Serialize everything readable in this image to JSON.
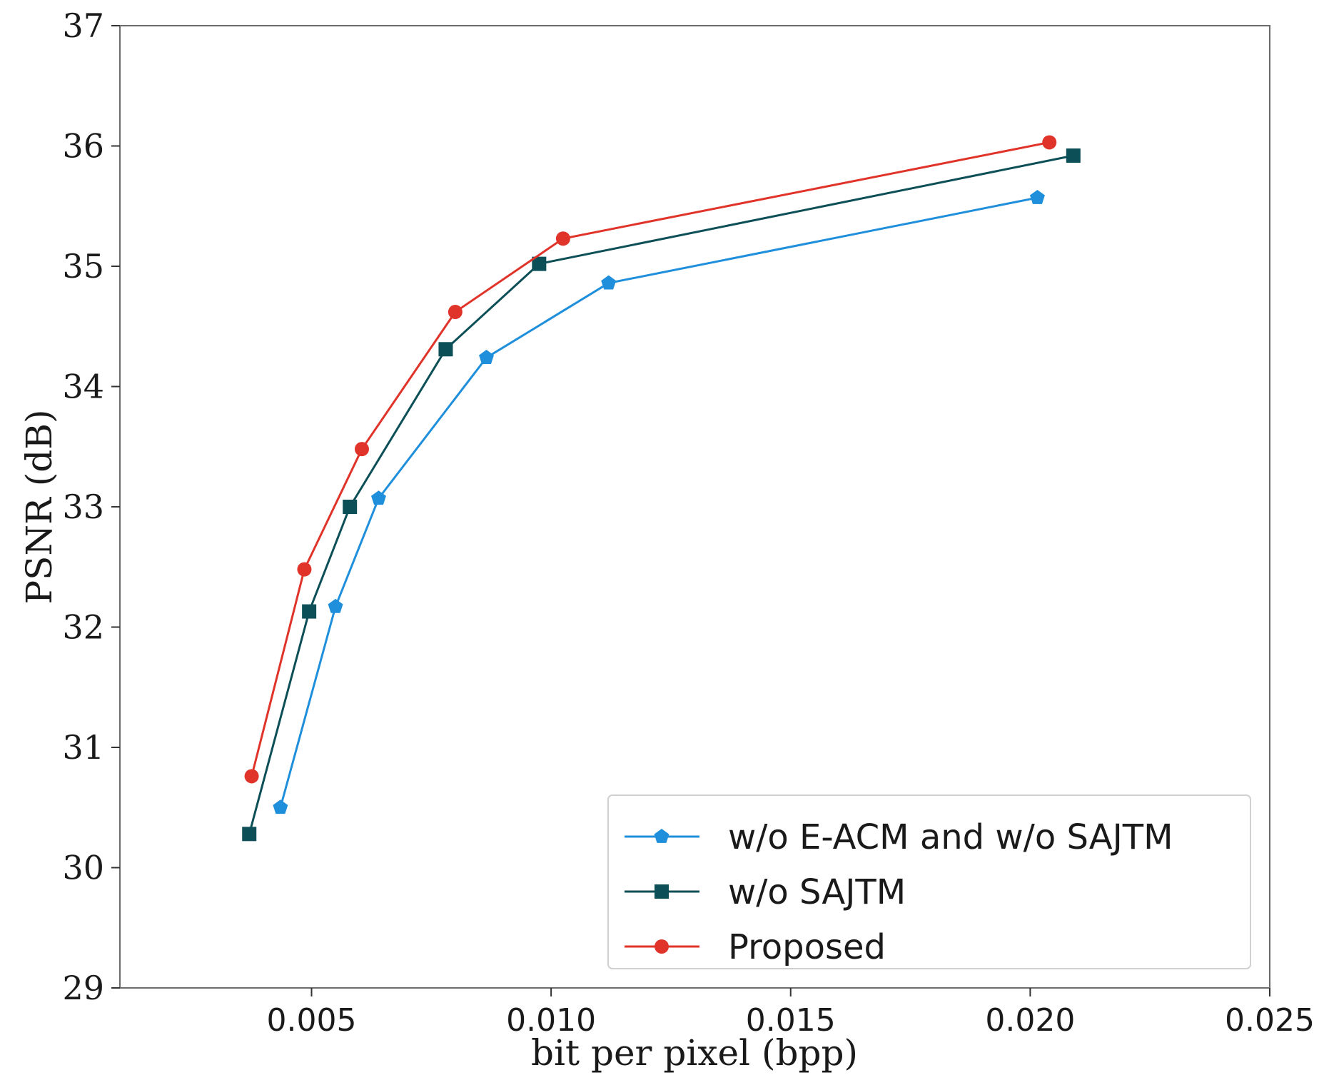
{
  "chart_data": {
    "type": "line",
    "title": "",
    "xlabel": "bit per pixel (bpp)",
    "ylabel": "PSNR (dB)",
    "xlim": [
      0.001,
      0.025
    ],
    "ylim": [
      29,
      37
    ],
    "xticks": [
      0.005,
      0.01,
      0.015,
      0.02,
      0.025
    ],
    "xtick_labels": [
      "0.005",
      "0.010",
      "0.015",
      "0.020",
      "0.025"
    ],
    "yticks": [
      29,
      30,
      31,
      32,
      33,
      34,
      35,
      36,
      37
    ],
    "ytick_labels": [
      "29",
      "30",
      "31",
      "32",
      "33",
      "34",
      "35",
      "36",
      "37"
    ],
    "grid": false,
    "legend_position": "bottom-right",
    "series": [
      {
        "name": "w/o E-ACM and w/o SAJTM",
        "color": "#1f8fdc",
        "marker": "pentagon",
        "x": [
          0.00435,
          0.0055,
          0.0064,
          0.00865,
          0.0112,
          0.02015
        ],
        "y": [
          30.5,
          32.17,
          33.07,
          34.24,
          34.86,
          35.57
        ]
      },
      {
        "name": "w/o SAJTM",
        "color": "#0d4f57",
        "marker": "square",
        "x": [
          0.0037,
          0.00495,
          0.0058,
          0.0078,
          0.00975,
          0.0209
        ],
        "y": [
          30.28,
          32.13,
          33.0,
          34.31,
          35.02,
          35.92
        ]
      },
      {
        "name": "Proposed",
        "color": "#e0342a",
        "marker": "circle",
        "x": [
          0.00375,
          0.00485,
          0.00605,
          0.008,
          0.01025,
          0.0204
        ],
        "y": [
          30.76,
          32.48,
          33.48,
          34.62,
          35.23,
          36.03
        ]
      }
    ]
  }
}
